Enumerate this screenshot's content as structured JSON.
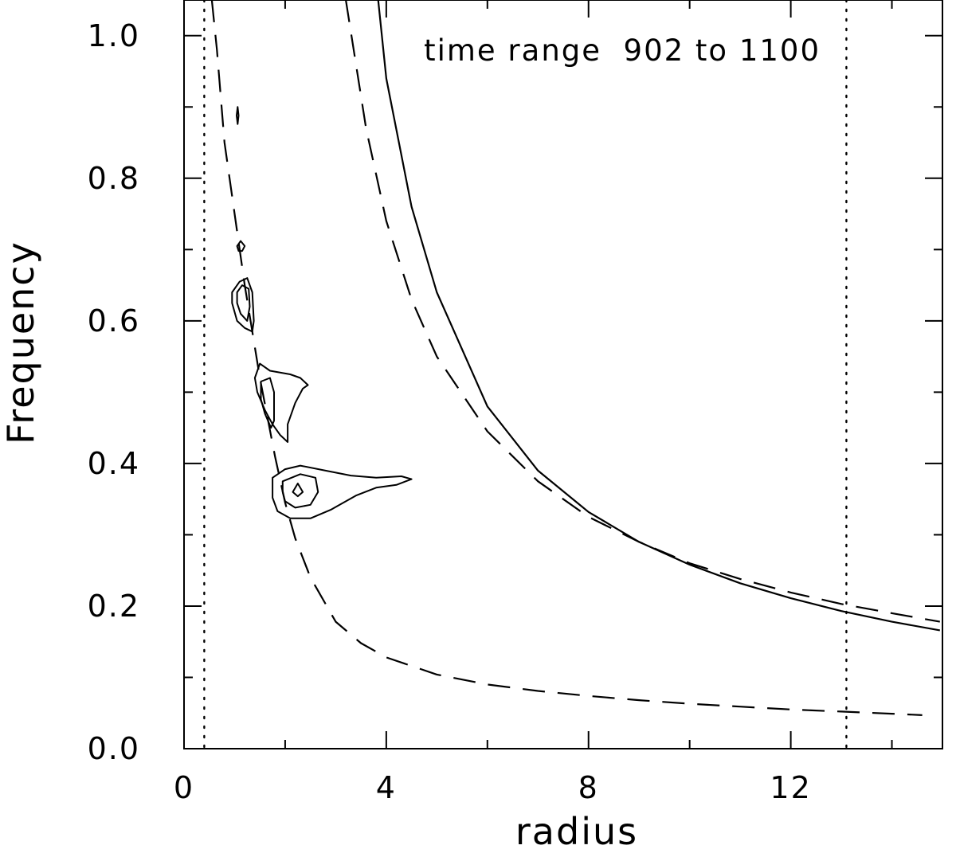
{
  "chart_data": {
    "type": "line",
    "title": "",
    "annotation": "time range  902 to 1100",
    "xlabel": "radius",
    "ylabel": "Frequency",
    "xlim": [
      0,
      15
    ],
    "ylim": [
      0,
      1.05
    ],
    "x_major_ticks": [
      0,
      4,
      8,
      12
    ],
    "x_tick_labels": [
      "0",
      "4",
      "8",
      "12"
    ],
    "x_minor_ticks": [
      2,
      6,
      10,
      14
    ],
    "y_major_ticks": [
      0.0,
      0.2,
      0.4,
      0.6,
      0.8,
      1.0
    ],
    "y_tick_labels": [
      "0.0",
      "0.2",
      "0.4",
      "0.6",
      "0.8",
      "1.0"
    ],
    "y_minor_ticks": [
      0.1,
      0.3,
      0.5,
      0.7,
      0.9
    ],
    "grid": false,
    "vertical_lines": [
      {
        "x": 0.4,
        "style": "dotted"
      },
      {
        "x": 13.1,
        "style": "dotted"
      }
    ],
    "series": [
      {
        "style": "solid",
        "x": [
          3.84,
          4.0,
          4.5,
          5.0,
          6.0,
          7.0,
          8.0,
          9.0,
          10.0,
          11.0,
          12.0,
          13.0,
          14.0,
          14.95
        ],
        "y": [
          1.05,
          0.94,
          0.76,
          0.64,
          0.48,
          0.39,
          0.332,
          0.29,
          0.258,
          0.232,
          0.211,
          0.193,
          0.178,
          0.166
        ]
      },
      {
        "style": "dashed",
        "x": [
          3.2,
          3.6,
          4.0,
          4.5,
          5.0,
          6.0,
          7.0,
          8.0,
          9.0,
          10.0,
          11.0,
          12.0,
          13.0,
          14.0,
          14.95
        ],
        "y": [
          1.05,
          0.87,
          0.74,
          0.63,
          0.55,
          0.445,
          0.375,
          0.325,
          0.29,
          0.26,
          0.238,
          0.219,
          0.203,
          0.19,
          0.178
        ]
      },
      {
        "style": "dashed",
        "x": [
          0.55,
          0.65,
          0.8,
          1.0,
          1.2,
          1.5,
          1.8,
          2.0,
          2.2,
          2.5,
          3.0,
          3.5,
          4.0,
          5.0,
          6.0,
          7.0,
          8.0,
          9.0,
          10.0,
          11.0,
          12.0,
          13.0,
          14.0,
          14.6
        ],
        "y": [
          1.05,
          0.98,
          0.85,
          0.75,
          0.65,
          0.52,
          0.41,
          0.345,
          0.295,
          0.24,
          0.178,
          0.148,
          0.128,
          0.104,
          0.09,
          0.081,
          0.074,
          0.068,
          0.063,
          0.059,
          0.055,
          0.052,
          0.049,
          0.047
        ]
      }
    ],
    "contours": [
      {
        "shape": "closed",
        "points": [
          [
            1.04,
            0.888
          ],
          [
            1.06,
            0.9
          ],
          [
            1.08,
            0.888
          ],
          [
            1.06,
            0.876
          ]
        ]
      },
      {
        "shape": "closed",
        "points": [
          [
            1.05,
            0.705
          ],
          [
            1.12,
            0.712
          ],
          [
            1.2,
            0.705
          ],
          [
            1.15,
            0.698
          ],
          [
            1.08,
            0.698
          ]
        ]
      },
      {
        "shape": "closed",
        "points": [
          [
            0.95,
            0.64
          ],
          [
            1.1,
            0.655
          ],
          [
            1.25,
            0.66
          ],
          [
            1.35,
            0.64
          ],
          [
            1.38,
            0.6
          ],
          [
            1.35,
            0.585
          ],
          [
            1.2,
            0.59
          ],
          [
            1.05,
            0.6
          ],
          [
            0.95,
            0.625
          ]
        ]
      },
      {
        "shape": "closed",
        "points": [
          [
            1.05,
            0.64
          ],
          [
            1.15,
            0.65
          ],
          [
            1.28,
            0.645
          ],
          [
            1.3,
            0.62
          ],
          [
            1.25,
            0.6
          ],
          [
            1.12,
            0.61
          ],
          [
            1.05,
            0.625
          ]
        ]
      },
      {
        "shape": "closed",
        "points": [
          [
            1.4,
            0.52
          ],
          [
            1.5,
            0.54
          ],
          [
            1.7,
            0.53
          ],
          [
            2.1,
            0.525
          ],
          [
            2.3,
            0.52
          ],
          [
            2.45,
            0.51
          ],
          [
            2.35,
            0.505
          ],
          [
            2.2,
            0.485
          ],
          [
            2.05,
            0.455
          ],
          [
            2.05,
            0.43
          ],
          [
            1.9,
            0.44
          ],
          [
            1.75,
            0.455
          ],
          [
            1.6,
            0.475
          ],
          [
            1.45,
            0.5
          ]
        ]
      },
      {
        "shape": "closed",
        "points": [
          [
            1.52,
            0.515
          ],
          [
            1.7,
            0.52
          ],
          [
            1.78,
            0.5
          ],
          [
            1.78,
            0.46
          ],
          [
            1.72,
            0.45
          ],
          [
            1.6,
            0.47
          ],
          [
            1.52,
            0.49
          ]
        ]
      },
      {
        "shape": "closed",
        "points": [
          [
            1.75,
            0.38
          ],
          [
            2.0,
            0.392
          ],
          [
            2.3,
            0.397
          ],
          [
            2.8,
            0.39
          ],
          [
            3.3,
            0.383
          ],
          [
            3.8,
            0.38
          ],
          [
            4.3,
            0.382
          ],
          [
            4.5,
            0.378
          ],
          [
            4.2,
            0.37
          ],
          [
            3.8,
            0.366
          ],
          [
            3.4,
            0.355
          ],
          [
            2.9,
            0.335
          ],
          [
            2.5,
            0.323
          ],
          [
            2.1,
            0.323
          ],
          [
            1.85,
            0.333
          ],
          [
            1.75,
            0.352
          ]
        ]
      },
      {
        "shape": "closed",
        "points": [
          [
            1.95,
            0.375
          ],
          [
            2.3,
            0.385
          ],
          [
            2.6,
            0.38
          ],
          [
            2.65,
            0.36
          ],
          [
            2.5,
            0.342
          ],
          [
            2.2,
            0.338
          ],
          [
            2.0,
            0.347
          ],
          [
            1.95,
            0.36
          ]
        ]
      },
      {
        "shape": "closed",
        "points": [
          [
            2.15,
            0.36
          ],
          [
            2.25,
            0.372
          ],
          [
            2.35,
            0.36
          ],
          [
            2.25,
            0.354
          ]
        ]
      }
    ]
  }
}
